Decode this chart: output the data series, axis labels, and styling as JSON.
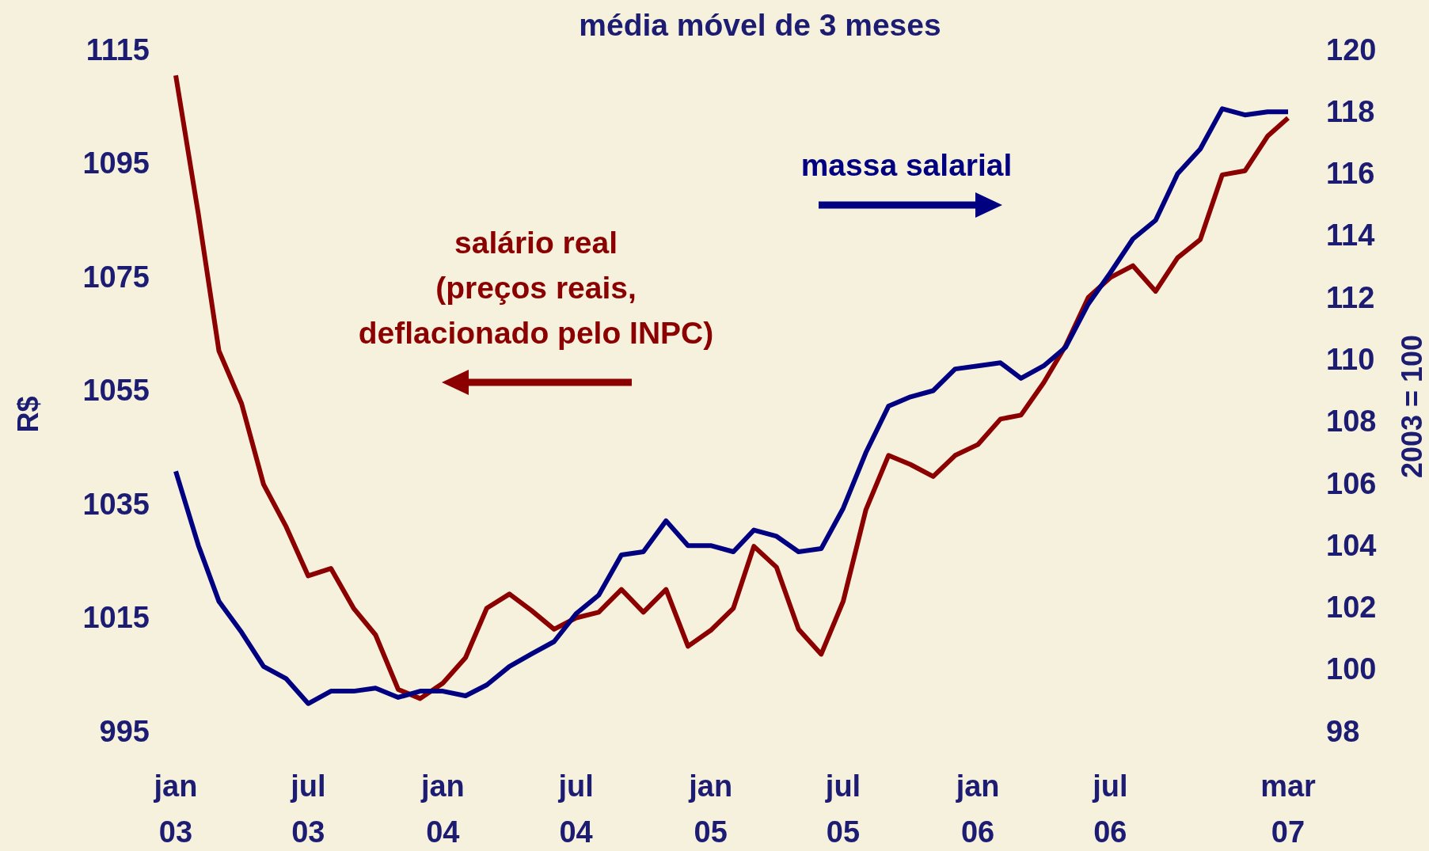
{
  "chart_data": {
    "type": "line",
    "title": "média móvel de 3 meses",
    "ylabel": "R$",
    "y2label": "2003 = 100",
    "x": [
      "2003-01",
      "2003-02",
      "2003-03",
      "2003-04",
      "2003-05",
      "2003-06",
      "2003-07",
      "2003-08",
      "2003-09",
      "2003-10",
      "2003-11",
      "2003-12",
      "2004-01",
      "2004-02",
      "2004-03",
      "2004-04",
      "2004-05",
      "2004-06",
      "2004-07",
      "2004-08",
      "2004-09",
      "2004-10",
      "2004-11",
      "2004-12",
      "2005-01",
      "2005-02",
      "2005-03",
      "2005-04",
      "2005-05",
      "2005-06",
      "2005-07",
      "2005-08",
      "2005-09",
      "2005-10",
      "2005-11",
      "2005-12",
      "2006-01",
      "2006-02",
      "2006-03",
      "2006-04",
      "2006-05",
      "2006-06",
      "2006-07",
      "2006-08",
      "2006-09",
      "2006-10",
      "2006-11",
      "2006-12",
      "2007-01",
      "2007-02",
      "2007-03"
    ],
    "series": [
      {
        "name": "salário real\n(preços reais,\ndeflacionado pelo INPC)",
        "color": "#8b0000",
        "values": [
          1110.5,
          1086,
          1062,
          1052.7,
          1038.5,
          1031,
          1022.4,
          1023.7,
          1016.7,
          1012,
          1002.4,
          1000.8,
          1003.5,
          1008,
          1016.7,
          1019.2,
          1016.3,
          1013,
          1015,
          1016,
          1020,
          1016,
          1020,
          1010,
          1012.8,
          1016.7,
          1027.6,
          1023.9,
          1013,
          1008.6,
          1017.9,
          1034,
          1043.6,
          1042,
          1039.9,
          1043.6,
          1045.5,
          1050,
          1050.7,
          1056.4,
          1062.9,
          1071.4,
          1074.9,
          1077,
          1072.5,
          1078.4,
          1081.6,
          1093,
          1093.7,
          1099.8,
          1103
        ]
      },
      {
        "name": "massa salarial",
        "color": "#000080",
        "axis": "y2",
        "values": [
          106.4,
          104,
          102.2,
          101.2,
          100.1,
          99.7,
          98.9,
          99.3,
          99.3,
          99.4,
          99.1,
          99.3,
          99.3,
          99.15,
          99.5,
          100.1,
          100.5,
          100.9,
          101.8,
          102.4,
          103.7,
          103.8,
          104.8,
          104,
          104,
          103.8,
          104.5,
          104.3,
          103.8,
          103.9,
          105.2,
          107,
          108.5,
          108.8,
          109,
          109.7,
          109.8,
          109.9,
          109.4,
          109.8,
          110.4,
          111.8,
          112.8,
          113.9,
          114.5,
          116,
          116.8,
          118.1,
          117.9,
          118,
          118
        ]
      }
    ],
    "xlim": [
      "2003-01",
      "2007-03"
    ],
    "xticks": [
      {
        "value": "2003-01",
        "label": "jan 03"
      },
      {
        "value": "2003-07",
        "label": "jul 03"
      },
      {
        "value": "2004-01",
        "label": "jan 04"
      },
      {
        "value": "2004-07",
        "label": "jul 04"
      },
      {
        "value": "2005-01",
        "label": "jan 05"
      },
      {
        "value": "2005-07",
        "label": "jul 05"
      },
      {
        "value": "2006-01",
        "label": "jan 06"
      },
      {
        "value": "2006-07",
        "label": "jul 06"
      },
      {
        "value": "2007-03",
        "label": "mar 07"
      }
    ],
    "ylim": [
      995,
      1115
    ],
    "yticks": [
      995,
      1015,
      1035,
      1055,
      1075,
      1095,
      1115
    ],
    "y2lim": [
      98,
      120
    ],
    "y2ticks": [
      98,
      100,
      102,
      104,
      106,
      108,
      110,
      112,
      114,
      116,
      118,
      120
    ],
    "grid": false,
    "marker": "none",
    "line_style": "solid"
  }
}
